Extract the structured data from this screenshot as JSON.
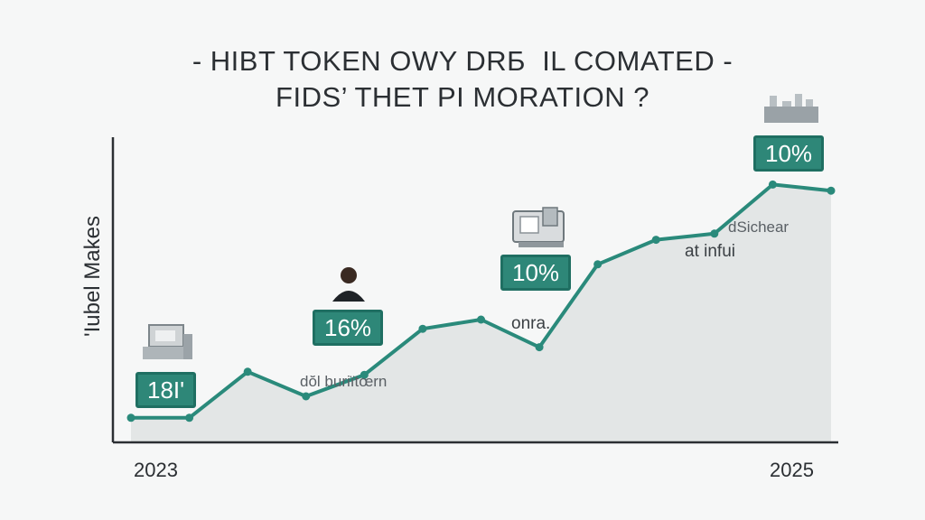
{
  "title": {
    "line1": "- HIBT TOKEN OWY DRБ  IL COMATED -",
    "line2": "FIDS’ THET PI MORATION ?"
  },
  "chart_data": {
    "type": "area",
    "title": "- HIBT TOKEN OWY DRБ  IL COMATED - FIDS’ THET PI MORATION ?",
    "ylabel": "'Iubel Makes",
    "xlabel": "",
    "x_tick_labels": [
      "2023",
      "2025"
    ],
    "x": [
      0,
      1,
      2,
      3,
      4,
      5,
      6,
      7,
      8,
      9,
      10,
      11,
      12
    ],
    "series": [
      {
        "values": [
          8,
          8,
          23,
          15,
          22,
          37,
          40,
          31,
          58,
          66,
          68,
          84,
          82
        ]
      }
    ],
    "ylim": [
      0,
      100
    ],
    "grid": false,
    "badges": [
      {
        "text": "18I'",
        "point": 0
      },
      {
        "text": "16%",
        "point": 2
      },
      {
        "text": "10%",
        "point": 5
      },
      {
        "text": "10%",
        "point": 11
      }
    ],
    "annotations": [
      {
        "text": "dŏl buriїtœrn",
        "near_point": 3
      },
      {
        "text": "onra.",
        "near_point": 6
      },
      {
        "text": "dSichear",
        "near_point": 9
      },
      {
        "text": "at infui",
        "near_point": 8
      }
    ],
    "colors": {
      "line": "#2a8a7b",
      "area": "#e3e6e6",
      "badge": "#2e8778",
      "axis": "#2b2f33"
    }
  }
}
